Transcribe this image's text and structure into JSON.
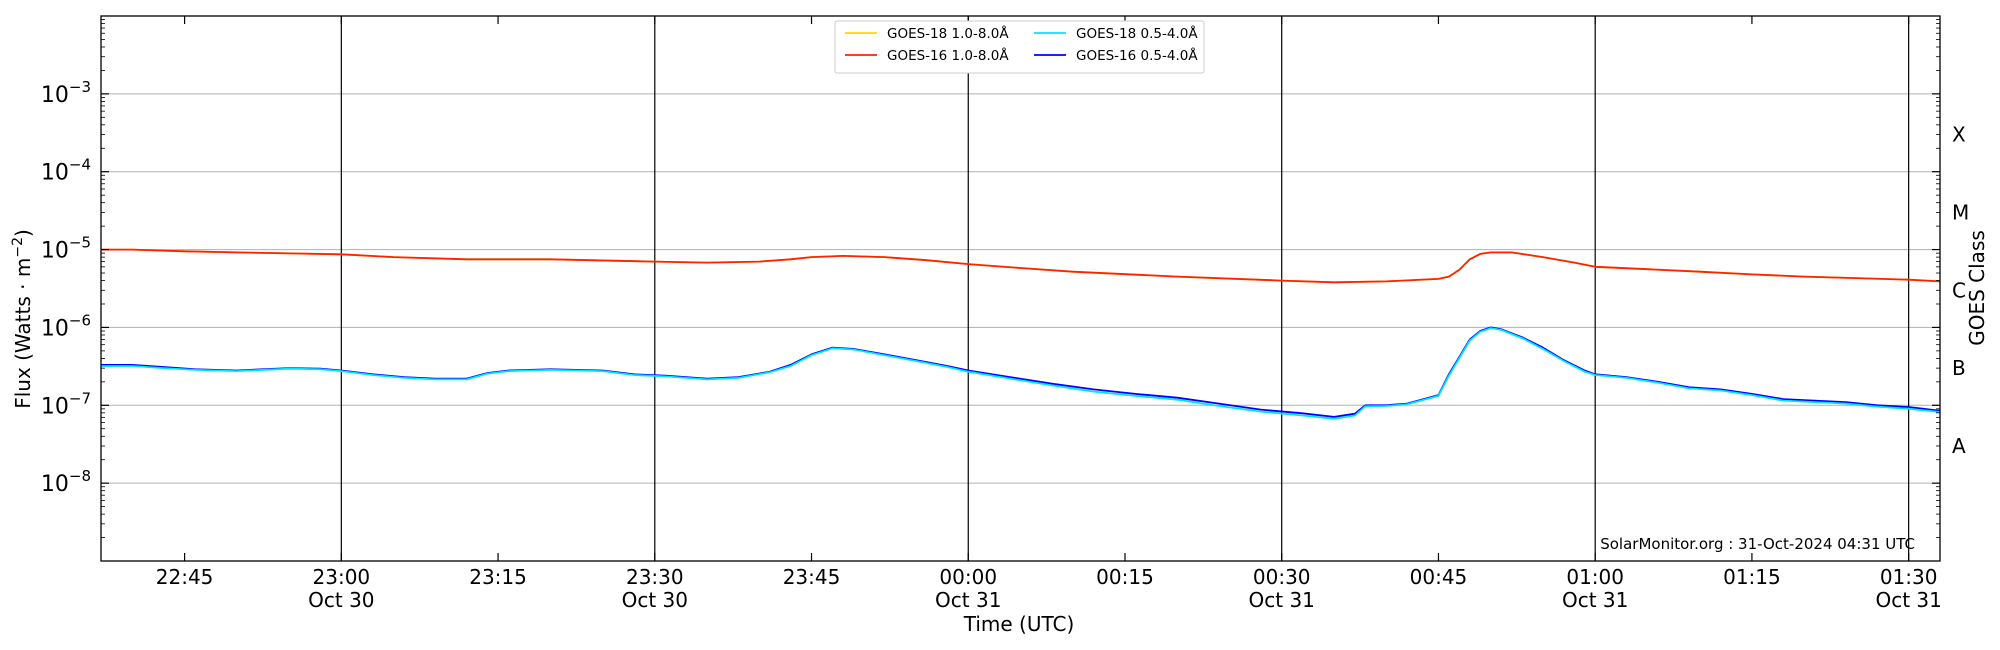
{
  "chart_data": {
    "type": "line",
    "ylabel": "Flux (Watts · m",
    "ylabel_sup": "−2",
    "ylabel_close": ")",
    "xlabel": "Time (UTC)",
    "right_label": "GOES Class",
    "watermark": "SolarMonitor.org : 31-Oct-2024 04:31 UTC",
    "x_range": [
      "2024-10-30 22:37",
      "2024-10-31 01:33"
    ],
    "y_scale": "log",
    "ylim": [
      1e-09,
      0.01
    ],
    "grid": "horizontal at each decade",
    "legend_position": "top-center",
    "y_ticks": [
      {
        "value": 1e-08,
        "label": "10",
        "exp": "−8"
      },
      {
        "value": 1e-07,
        "label": "10",
        "exp": "−7"
      },
      {
        "value": 1e-06,
        "label": "10",
        "exp": "−6"
      },
      {
        "value": 1e-05,
        "label": "10",
        "exp": "−5"
      },
      {
        "value": 0.0001,
        "label": "10",
        "exp": "−4"
      },
      {
        "value": 0.001,
        "label": "10",
        "exp": "−3"
      }
    ],
    "x_ticks": [
      {
        "t": "2024-10-30 22:45",
        "time": "22:45",
        "date": ""
      },
      {
        "t": "2024-10-30 23:00",
        "time": "23:00",
        "date": "Oct 30"
      },
      {
        "t": "2024-10-30 23:15",
        "time": "23:15",
        "date": ""
      },
      {
        "t": "2024-10-30 23:30",
        "time": "23:30",
        "date": "Oct 30"
      },
      {
        "t": "2024-10-30 23:45",
        "time": "23:45",
        "date": ""
      },
      {
        "t": "2024-10-31 00:00",
        "time": "00:00",
        "date": "Oct 31"
      },
      {
        "t": "2024-10-31 00:15",
        "time": "00:15",
        "date": ""
      },
      {
        "t": "2024-10-31 00:30",
        "time": "00:30",
        "date": "Oct 31"
      },
      {
        "t": "2024-10-31 00:45",
        "time": "00:45",
        "date": ""
      },
      {
        "t": "2024-10-31 01:00",
        "time": "01:00",
        "date": "Oct 31"
      },
      {
        "t": "2024-10-31 01:15",
        "time": "01:15",
        "date": ""
      },
      {
        "t": "2024-10-31 01:30",
        "time": "01:30",
        "date": "Oct 31"
      }
    ],
    "vertical_lines": [
      "2024-10-30 23:00",
      "2024-10-30 23:30",
      "2024-10-31 00:00",
      "2024-10-31 00:30",
      "2024-10-31 01:00",
      "2024-10-31 01:30"
    ],
    "goes_classes": [
      {
        "label": "A",
        "value": 3e-08
      },
      {
        "label": "B",
        "value": 3e-07
      },
      {
        "label": "C",
        "value": 3e-06
      },
      {
        "label": "M",
        "value": 3e-05
      },
      {
        "label": "X",
        "value": 0.0003
      }
    ],
    "series": [
      {
        "name": "GOES-16 0.5-4.0Å",
        "color": "#0000ff",
        "x": [
          "22:37",
          "22:40",
          "22:43",
          "22:46",
          "22:50",
          "22:55",
          "22:58",
          "23:00",
          "23:03",
          "23:06",
          "23:09",
          "23:12",
          "23:14",
          "23:16",
          "23:20",
          "23:25",
          "23:28",
          "23:31",
          "23:35",
          "23:38",
          "23:41",
          "23:43",
          "23:45",
          "23:47",
          "23:49",
          "23:52",
          "23:55",
          "23:58",
          "00:00",
          "00:04",
          "00:08",
          "00:12",
          "00:16",
          "00:20",
          "00:24",
          "00:28",
          "00:32",
          "00:35",
          "00:37",
          "00:38",
          "00:40",
          "00:42",
          "00:45",
          "00:46",
          "00:48",
          "00:49",
          "00:50",
          "00:51",
          "00:53",
          "00:55",
          "00:57",
          "00:59",
          "01:00",
          "01:03",
          "01:06",
          "01:09",
          "01:12",
          "01:15",
          "01:18",
          "01:21",
          "01:24",
          "01:27",
          "01:30",
          "01:33"
        ],
        "values": [
          3.3e-07,
          3.3e-07,
          3.1e-07,
          2.9e-07,
          2.8e-07,
          3e-07,
          2.95e-07,
          2.8e-07,
          2.5e-07,
          2.3e-07,
          2.2e-07,
          2.2e-07,
          2.6e-07,
          2.8e-07,
          2.9e-07,
          2.8e-07,
          2.5e-07,
          2.4e-07,
          2.2e-07,
          2.3e-07,
          2.7e-07,
          3.3e-07,
          4.5e-07,
          5.5e-07,
          5.3e-07,
          4.5e-07,
          3.8e-07,
          3.2e-07,
          2.8e-07,
          2.3e-07,
          1.9e-07,
          1.6e-07,
          1.4e-07,
          1.25e-07,
          1.05e-07,
          8.8e-08,
          7.9e-08,
          7.1e-08,
          7.8e-08,
          1e-07,
          1e-07,
          1.05e-07,
          1.35e-07,
          2.5e-07,
          7e-07,
          9e-07,
          1e-06,
          9.5e-07,
          7.5e-07,
          5.5e-07,
          3.8e-07,
          2.8e-07,
          2.5e-07,
          2.3e-07,
          2e-07,
          1.7e-07,
          1.6e-07,
          1.4e-07,
          1.2e-07,
          1.15e-07,
          1.1e-07,
          1e-07,
          9.5e-08,
          8.5e-08
        ]
      },
      {
        "name": "GOES-18 0.5-4.0Å",
        "color": "#00e5ff",
        "x": [
          "22:37",
          "22:40",
          "22:43",
          "22:46",
          "22:50",
          "22:55",
          "22:58",
          "23:00",
          "23:03",
          "23:06",
          "23:09",
          "23:12",
          "23:14",
          "23:16",
          "23:20",
          "23:25",
          "23:28",
          "23:31",
          "23:35",
          "23:38",
          "23:41",
          "23:43",
          "23:45",
          "23:47",
          "23:49",
          "23:52",
          "23:55",
          "23:58",
          "00:00",
          "00:04",
          "00:08",
          "00:12",
          "00:16",
          "00:20",
          "00:24",
          "00:28",
          "00:32",
          "00:35",
          "00:37",
          "00:38",
          "00:40",
          "00:42",
          "00:45",
          "00:46",
          "00:48",
          "00:49",
          "00:50",
          "00:51",
          "00:53",
          "00:55",
          "00:57",
          "00:59",
          "01:00",
          "01:03",
          "01:06",
          "01:09",
          "01:12",
          "01:15",
          "01:18",
          "01:21",
          "01:24",
          "01:27",
          "01:30",
          "01:33"
        ],
        "values": [
          3.2e-07,
          3.2e-07,
          3e-07,
          2.85e-07,
          2.75e-07,
          2.95e-07,
          2.9e-07,
          2.75e-07,
          2.45e-07,
          2.25e-07,
          2.15e-07,
          2.15e-07,
          2.55e-07,
          2.75e-07,
          2.85e-07,
          2.75e-07,
          2.45e-07,
          2.35e-07,
          2.15e-07,
          2.25e-07,
          2.65e-07,
          3.2e-07,
          4.4e-07,
          5.4e-07,
          5.2e-07,
          4.4e-07,
          3.7e-07,
          3.1e-07,
          2.7e-07,
          2.2e-07,
          1.8e-07,
          1.5e-07,
          1.32e-07,
          1.18e-07,
          9.8e-08,
          8.3e-08,
          7.4e-08,
          6.7e-08,
          7.4e-08,
          9.7e-08,
          9.8e-08,
          1.03e-07,
          1.32e-07,
          2.4e-07,
          6.8e-07,
          8.8e-07,
          9.8e-07,
          9.3e-07,
          7.3e-07,
          5.3e-07,
          3.7e-07,
          2.7e-07,
          2.45e-07,
          2.25e-07,
          1.95e-07,
          1.65e-07,
          1.55e-07,
          1.35e-07,
          1.15e-07,
          1.1e-07,
          1.05e-07,
          9.6e-08,
          9e-08,
          8.2e-08
        ]
      },
      {
        "name": "GOES-16 1.0-8.0Å",
        "color": "#ff2200",
        "x": [
          "22:37",
          "22:40",
          "22:45",
          "22:50",
          "23:00",
          "23:05",
          "23:12",
          "23:20",
          "23:30",
          "23:35",
          "23:40",
          "23:43",
          "23:45",
          "23:48",
          "23:52",
          "23:56",
          "00:00",
          "00:05",
          "00:10",
          "00:20",
          "00:30",
          "00:35",
          "00:40",
          "00:45",
          "00:46",
          "00:47",
          "00:48",
          "00:49",
          "00:50",
          "00:52",
          "00:55",
          "00:58",
          "01:00",
          "01:05",
          "01:10",
          "01:15",
          "01:20",
          "01:25",
          "01:30",
          "01:33"
        ],
        "values": [
          1e-05,
          1e-05,
          9.5e-06,
          9.2e-06,
          8.7e-06,
          8e-06,
          7.5e-06,
          7.5e-06,
          7e-06,
          6.8e-06,
          7e-06,
          7.5e-06,
          8e-06,
          8.3e-06,
          8e-06,
          7.3e-06,
          6.5e-06,
          5.8e-06,
          5.2e-06,
          4.5e-06,
          4e-06,
          3.8e-06,
          3.9e-06,
          4.2e-06,
          4.5e-06,
          5.5e-06,
          7.5e-06,
          8.8e-06,
          9.2e-06,
          9.2e-06,
          8e-06,
          6.8e-06,
          6e-06,
          5.6e-06,
          5.2e-06,
          4.8e-06,
          4.5e-06,
          4.3e-06,
          4.1e-06,
          3.9e-06
        ]
      },
      {
        "name": "GOES-18 1.0-8.0Å",
        "color": "#ffd700",
        "x": [
          "22:37",
          "22:40",
          "22:45",
          "22:50",
          "23:00",
          "23:05",
          "23:12",
          "23:20",
          "23:30",
          "23:35",
          "23:40",
          "23:43",
          "23:45",
          "23:48",
          "23:52",
          "23:56",
          "00:00",
          "00:05",
          "00:10",
          "00:20",
          "00:30",
          "00:35",
          "00:40",
          "00:45",
          "00:46",
          "00:47",
          "00:48",
          "00:49",
          "00:50",
          "00:52",
          "00:55",
          "00:58",
          "01:00",
          "01:05",
          "01:10",
          "01:15",
          "01:20",
          "01:25",
          "01:30",
          "01:33"
        ],
        "values": [
          1e-05,
          1e-05,
          9.5e-06,
          9.2e-06,
          8.7e-06,
          8e-06,
          7.5e-06,
          7.5e-06,
          7e-06,
          6.8e-06,
          7e-06,
          7.5e-06,
          8e-06,
          8.3e-06,
          8e-06,
          7.3e-06,
          6.5e-06,
          5.8e-06,
          5.2e-06,
          4.5e-06,
          4e-06,
          3.8e-06,
          3.9e-06,
          4.2e-06,
          4.5e-06,
          5.5e-06,
          7.5e-06,
          8.8e-06,
          9.2e-06,
          9.2e-06,
          8e-06,
          6.8e-06,
          6e-06,
          5.6e-06,
          5.2e-06,
          4.8e-06,
          4.5e-06,
          4.3e-06,
          4.1e-06,
          3.9e-06
        ]
      }
    ],
    "legend": [
      {
        "name": "GOES-18 1.0-8.0Å",
        "color": "#ffd700"
      },
      {
        "name": "GOES-16 1.0-8.0Å",
        "color": "#ff2200"
      },
      {
        "name": "GOES-18 0.5-4.0Å",
        "color": "#00e5ff"
      },
      {
        "name": "GOES-16 0.5-4.0Å",
        "color": "#0000ff"
      }
    ]
  }
}
